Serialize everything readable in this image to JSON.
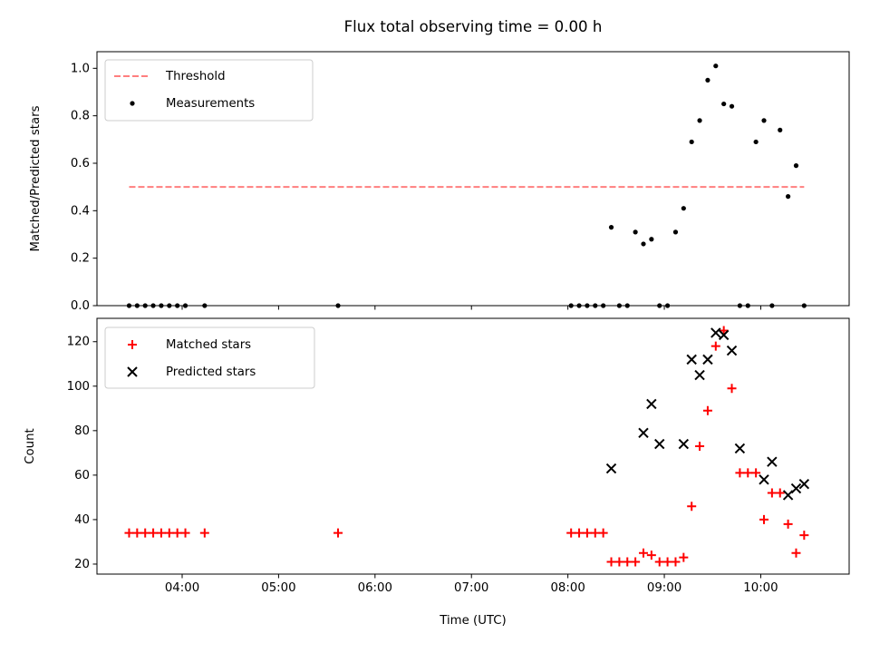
{
  "title": "Flux total observing time = 0.00 h",
  "chart_data": [
    {
      "type": "scatter",
      "ylabel": "Matched/Predicted stars",
      "ylim": [
        0.0,
        1.07
      ],
      "yticks": [
        "0.0",
        "0.2",
        "0.4",
        "0.6",
        "0.8",
        "1.0"
      ],
      "grid": false,
      "legend_position": "top-left",
      "threshold": {
        "name": "Threshold",
        "value": 0.5,
        "x_start": "03:27",
        "x_end": "10:27",
        "color": "#ff7f7f",
        "style": "dashed"
      },
      "measurements": {
        "name": "Measurements",
        "color": "#000000",
        "x": [
          "03:27",
          "03:32",
          "03:37",
          "03:42",
          "03:47",
          "03:52",
          "03:57",
          "04:02",
          "04:14",
          "05:37",
          "08:02",
          "08:07",
          "08:12",
          "08:17",
          "08:22",
          "08:27",
          "08:32",
          "08:37",
          "08:42",
          "08:47",
          "08:52",
          "08:57",
          "09:02",
          "09:07",
          "09:12",
          "09:17",
          "09:22",
          "09:27",
          "09:32",
          "09:37",
          "09:42",
          "09:47",
          "09:52",
          "09:57",
          "10:02",
          "10:07",
          "10:12",
          "10:17",
          "10:22",
          "10:27"
        ],
        "y": [
          0,
          0,
          0,
          0,
          0,
          0,
          0,
          0,
          0,
          0,
          0,
          0,
          0,
          0,
          0,
          0.33,
          0,
          0,
          0.31,
          0.26,
          0.28,
          0,
          0,
          0.31,
          0.41,
          0.69,
          0.78,
          0.95,
          1.01,
          0.85,
          0.84,
          0,
          0,
          0.69,
          0.78,
          0,
          0.74,
          0.46,
          0.59,
          0
        ]
      }
    },
    {
      "type": "scatter",
      "xlabel": "Time (UTC)",
      "ylabel": "Count",
      "xlim": [
        "03:07",
        "10:55"
      ],
      "xticks": [
        "04:00",
        "05:00",
        "06:00",
        "07:00",
        "08:00",
        "09:00",
        "10:00"
      ],
      "ylim": [
        15.5,
        130.5
      ],
      "yticks": [
        "20",
        "40",
        "60",
        "80",
        "100",
        "120"
      ],
      "grid": false,
      "legend_position": "top-left",
      "series": [
        {
          "name": "Matched stars",
          "marker": "plus",
          "color": "#ff0000",
          "x": [
            "03:27",
            "03:32",
            "03:37",
            "03:42",
            "03:47",
            "03:52",
            "03:57",
            "04:02",
            "04:14",
            "05:37",
            "08:02",
            "08:07",
            "08:12",
            "08:17",
            "08:22",
            "08:27",
            "08:32",
            "08:37",
            "08:42",
            "08:47",
            "08:52",
            "08:57",
            "09:02",
            "09:07",
            "09:12",
            "09:17",
            "09:22",
            "09:27",
            "09:32",
            "09:37",
            "09:42",
            "09:47",
            "09:52",
            "09:57",
            "10:02",
            "10:07",
            "10:12",
            "10:17",
            "10:22",
            "10:27"
          ],
          "y": [
            34,
            34,
            34,
            34,
            34,
            34,
            34,
            34,
            34,
            34,
            34,
            34,
            34,
            34,
            34,
            21,
            21,
            21,
            21,
            25,
            24,
            21,
            21,
            21,
            23,
            46,
            73,
            89,
            118,
            125,
            99,
            61,
            61,
            61,
            40,
            52,
            52,
            38,
            25,
            33
          ]
        },
        {
          "name": "Predicted stars",
          "marker": "x",
          "color": "#000000",
          "x": [
            "08:27",
            "08:47",
            "08:52",
            "08:57",
            "09:12",
            "09:17",
            "09:22",
            "09:27",
            "09:32",
            "09:37",
            "09:42",
            "09:47",
            "10:02",
            "10:07",
            "10:17",
            "10:22",
            "10:27"
          ],
          "y": [
            63,
            79,
            92,
            74,
            74,
            112,
            105,
            112,
            124,
            123,
            116,
            72,
            58,
            66,
            51,
            54,
            56
          ]
        }
      ]
    }
  ]
}
